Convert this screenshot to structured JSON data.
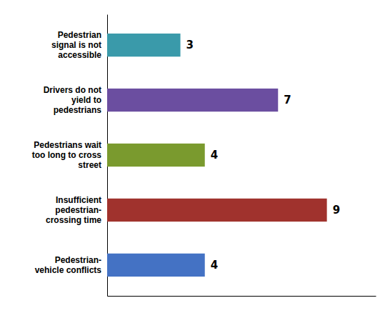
{
  "chart_data": {
    "type": "bar",
    "orientation": "horizontal",
    "categories": [
      "Pedestrian\nsignal is not\naccessible",
      "Drivers do not\nyield to\npedestrians",
      "Pedestrians wait\ntoo long to cross\nstreet",
      "Insufficient\npedestrian-\ncrossing time",
      "Pedestrian-\nvehicle conflicts"
    ],
    "values": [
      3,
      7,
      4,
      9,
      4
    ],
    "colors": [
      "#3a9aaa",
      "#6b4ea0",
      "#7a9a2e",
      "#a0322d",
      "#4472c4"
    ],
    "xlim": [
      0,
      11.0
    ],
    "data_labels": true,
    "tick_labels": "y"
  }
}
